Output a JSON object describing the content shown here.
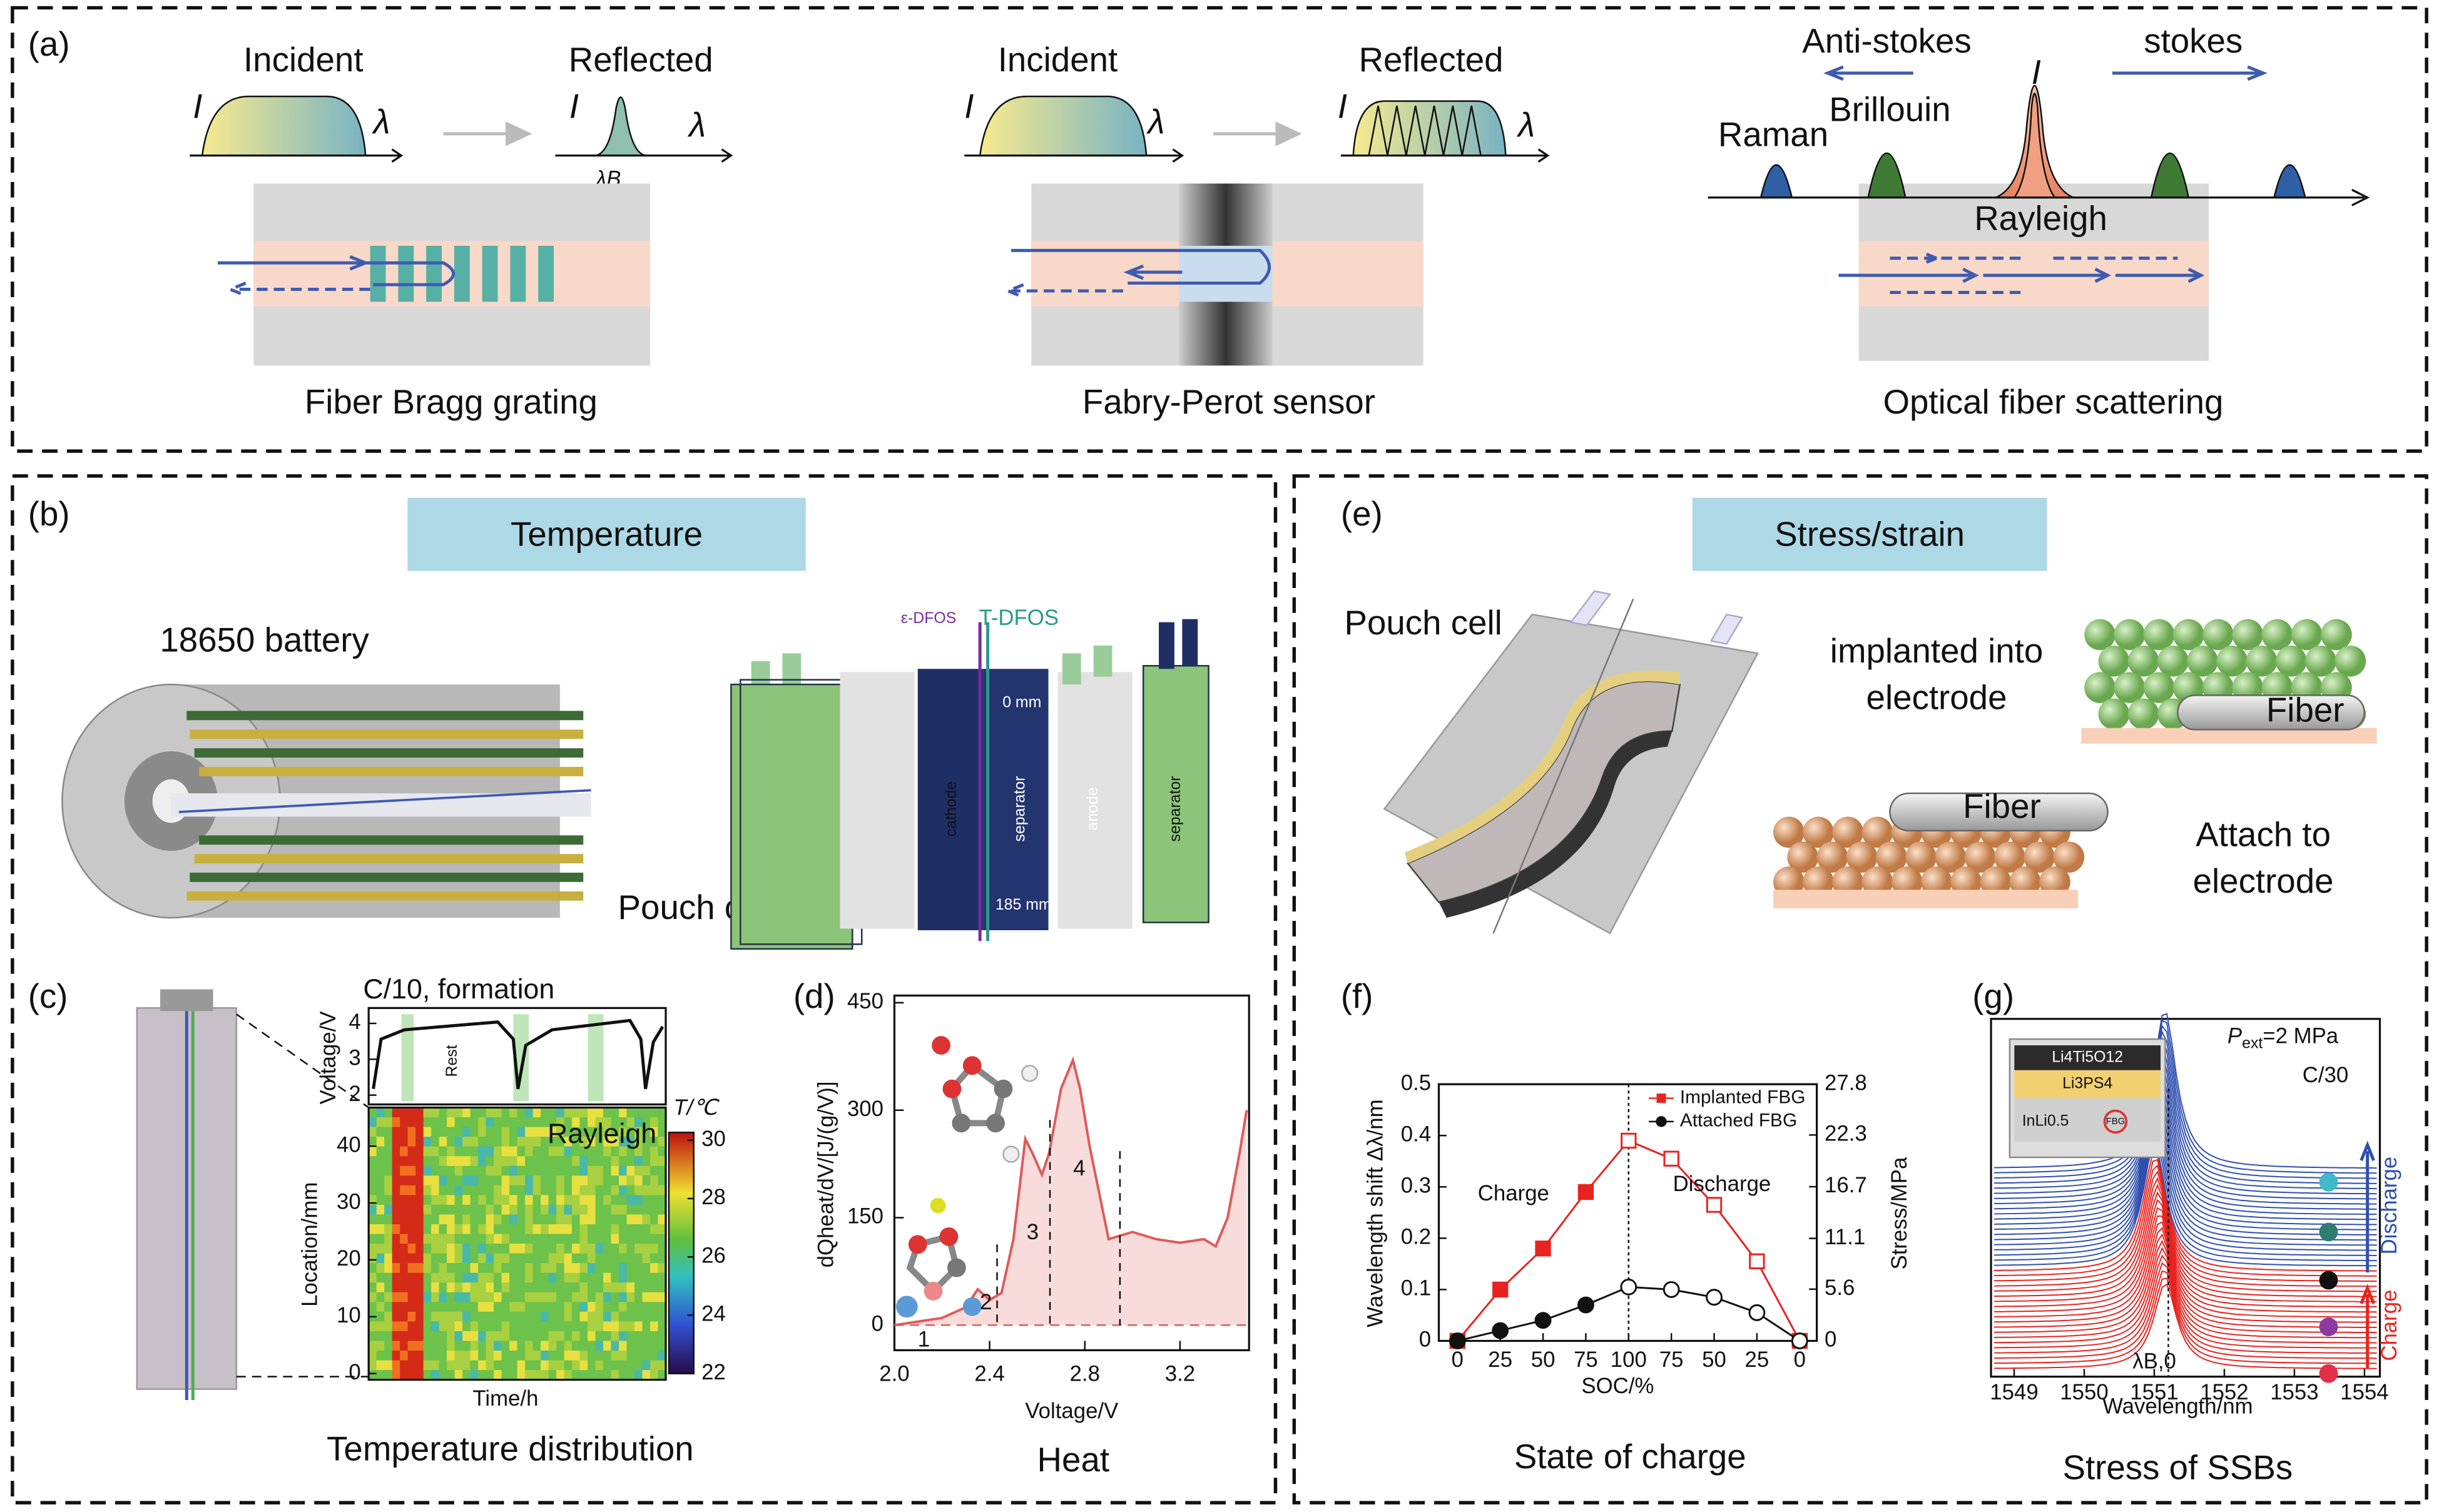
{
  "panel_a": {
    "label": "(a)",
    "fbg": {
      "incident": "Incident",
      "reflected": "Reflected",
      "intensity_1": "I",
      "wavelength_1": "λ",
      "intensity_2": "I",
      "wavelength_2": "λ",
      "bragg": "λB",
      "caption": "Fiber Bragg grating"
    },
    "fp": {
      "incident": "Incident",
      "reflected": "Reflected",
      "intensity_1": "I",
      "wavelength_1": "λ",
      "intensity_2": "I",
      "wavelength_2": "λ",
      "caption": "Fabry-Perot sensor"
    },
    "scattering": {
      "anti_stokes": "Anti-stokes",
      "stokes": "stokes",
      "intensity": "I",
      "raman": "Raman",
      "brillouin": "Brillouin",
      "rayleigh": "Rayleigh",
      "caption": "Optical fiber scattering"
    }
  },
  "panel_b": {
    "label": "(b)",
    "banner": "Temperature",
    "battery": "18650 battery",
    "pouch": "Pouch cell",
    "e_dfos": "ε-DFOS",
    "t_dfos": "T-DFOS",
    "layers": [
      "cathode",
      "separator",
      "anode",
      "separator"
    ],
    "top_mark": "0 mm",
    "bottom_mark": "185 mm"
  },
  "panel_c": {
    "label": "(c)",
    "title": "C/10, formation",
    "voltage_label": "Voltage/V",
    "voltage_ylim": [
      1.74,
      4.43
    ],
    "voltage_ticks": [
      2,
      3,
      4
    ],
    "rest": "Rest",
    "location_label": "Location/mm",
    "location_ylim": [
      -1.1,
      46.8
    ],
    "location_ticks": [
      0,
      10,
      20,
      30,
      40
    ],
    "time_label": "Time/h",
    "method": "Rayleigh",
    "colorbar_title": "T/℃",
    "colorbar_lim": [
      22,
      30
    ],
    "colorbar_ticks": [
      22,
      24,
      26,
      28,
      30
    ],
    "caption": "Temperature distribution"
  },
  "panel_d": {
    "label": "(d)",
    "chart": {
      "type": "area",
      "xlabel": "Voltage/V",
      "ylabel": "dQheat/dV/[J/(g/V)]",
      "x": [
        2.0,
        2.1,
        2.2,
        2.3,
        2.35,
        2.4,
        2.45,
        2.5,
        2.55,
        2.58,
        2.62,
        2.65,
        2.7,
        2.75,
        2.78,
        2.82,
        2.9,
        3.0,
        3.1,
        3.2,
        3.3,
        3.35,
        3.4,
        3.45,
        3.48
      ],
      "values": [
        0,
        5,
        10,
        25,
        50,
        35,
        45,
        120,
        260,
        240,
        210,
        240,
        330,
        370,
        330,
        250,
        120,
        130,
        120,
        115,
        120,
        110,
        150,
        240,
        300
      ],
      "color": "#e05a5a",
      "xlim": [
        2.0,
        3.49
      ],
      "ylim": [
        -35,
        460
      ],
      "xticks": [
        {
          "value": 2.0,
          "label": "2.0"
        },
        2.4,
        2.8,
        3.2
      ],
      "yticks": [
        0,
        150,
        300,
        450
      ],
      "annotations": [
        "1",
        "2",
        "3",
        "4"
      ]
    },
    "caption": "Heat"
  },
  "panel_e": {
    "label": "(e)",
    "banner": "Stress/strain",
    "pouch": "Pouch cell",
    "implanted_1": "implanted into",
    "implanted_2": "electrode",
    "fiber_1": "Fiber",
    "fiber_2": "Fiber",
    "attach_1": "Attach to",
    "attach_2": "electrode"
  },
  "panel_f": {
    "label": "(f)",
    "chart": {
      "type": "line",
      "xlabel": "SOC/%",
      "ylabel": "Wavelength shift Δλ/nm",
      "y2label": "Stress/MPa",
      "categories": [
        0,
        25,
        50,
        75,
        100,
        75,
        50,
        25,
        0
      ],
      "series": [
        {
          "name": "Implanted FBG",
          "color": "#e8231f",
          "marker": "square",
          "values": [
            0,
            0.1,
            0.18,
            0.29,
            0.39,
            0.355,
            0.265,
            0.155,
            0
          ]
        },
        {
          "name": "Attached FBG",
          "color": "#111111",
          "marker": "circle",
          "values": [
            0,
            0.02,
            0.04,
            0.07,
            0.105,
            0.1,
            0.085,
            0.055,
            0
          ]
        }
      ],
      "ylim": [
        0,
        0.5
      ],
      "yticks": [
        0,
        0.1,
        0.2,
        0.3,
        0.4,
        0.5
      ],
      "y2lim": [
        0,
        27.8
      ],
      "y2ticks": [
        0,
        5.6,
        11.1,
        16.7,
        22.3,
        27.8
      ],
      "annotations": [
        "Charge",
        "Discharge"
      ]
    },
    "caption": "State of charge"
  },
  "panel_g": {
    "label": "(g)",
    "pressure_symbol": "P",
    "pressure_sub": "ext",
    "pressure_value": "=2 MPa",
    "rate": "C/30",
    "layers": [
      "Li4Ti5O12",
      "Li3PS4",
      "InLi0.5",
      "FBG"
    ],
    "chart": {
      "xlabel": "Wavelength/nm",
      "xlim": [
        1548.67,
        1554.22
      ],
      "xticks": [
        1549,
        1550,
        1551,
        1552,
        1553,
        1554
      ]
    },
    "charge": "Charge",
    "discharge": "Discharge",
    "lambda": "λB,0",
    "caption": "Stress of SSBs"
  }
}
